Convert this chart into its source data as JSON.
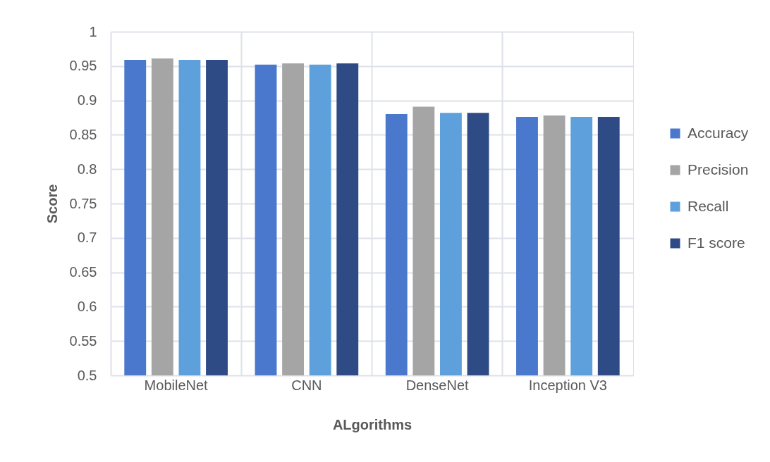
{
  "chart_data": {
    "type": "bar",
    "xlabel": "ALgorithms",
    "ylabel": "Score",
    "categories": [
      "MobileNet",
      "CNN",
      "DenseNet",
      "Inception V3"
    ],
    "series": [
      {
        "name": "Accuracy",
        "color": "#4a78cc",
        "values": [
          0.959,
          0.952,
          0.88,
          0.876
        ]
      },
      {
        "name": "Precision",
        "color": "#a5a5a5",
        "values": [
          0.961,
          0.954,
          0.891,
          0.878
        ]
      },
      {
        "name": "Recall",
        "color": "#5ea0db",
        "values": [
          0.959,
          0.952,
          0.882,
          0.876
        ]
      },
      {
        "name": "F1 score",
        "color": "#2e4b86",
        "values": [
          0.959,
          0.954,
          0.882,
          0.876
        ]
      }
    ],
    "ylim": [
      0.5,
      1
    ],
    "yticks": [
      0.5,
      0.55,
      0.6,
      0.65,
      0.7,
      0.75,
      0.8,
      0.85,
      0.9,
      0.95,
      1
    ],
    "grid": true,
    "legend": "right"
  }
}
